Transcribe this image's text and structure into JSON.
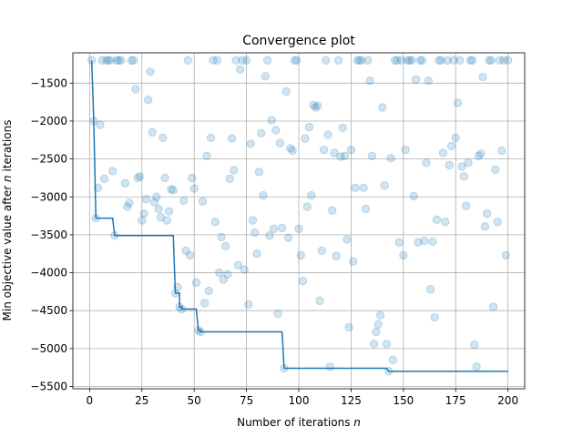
{
  "chart_data": {
    "type": "scatter",
    "title": "Convergence plot",
    "xlabel": "Number of iterations",
    "xlabel_var": "n",
    "ylabel_prefix": "Min objective value after",
    "ylabel_var": "n",
    "ylabel_suffix": "iterations",
    "xlim": [
      -8,
      208
    ],
    "ylim": [
      -5530,
      -1100
    ],
    "xticks": [
      0,
      25,
      50,
      75,
      100,
      125,
      150,
      175,
      200
    ],
    "xtick_labels": [
      "0",
      "25",
      "50",
      "75",
      "100",
      "125",
      "150",
      "175",
      "200"
    ],
    "yticks": [
      -5500,
      -5000,
      -4500,
      -4000,
      -3500,
      -3000,
      -2500,
      -2000,
      -1500
    ],
    "ytick_labels": [
      "−5500",
      "−5000",
      "−4500",
      "−4000",
      "−3500",
      "−3000",
      "−2500",
      "−2000",
      "−1500"
    ],
    "grid": true,
    "colors": {
      "series": "#1f77b4"
    },
    "series": [
      {
        "kind": "scatter",
        "points": [
          [
            1,
            -1200
          ],
          [
            2,
            -2000
          ],
          [
            3,
            -3280
          ],
          [
            4,
            -2880
          ],
          [
            5,
            -2050
          ],
          [
            6,
            -1200
          ],
          [
            7,
            -2760
          ],
          [
            8,
            -1200
          ],
          [
            9,
            -1200
          ],
          [
            10,
            -1200
          ],
          [
            11,
            -2660
          ],
          [
            12,
            -3510
          ],
          [
            13,
            -1200
          ],
          [
            14,
            -1200
          ],
          [
            15,
            -1200
          ],
          [
            17,
            -2820
          ],
          [
            18,
            -3130
          ],
          [
            19,
            -3080
          ],
          [
            20,
            -1200
          ],
          [
            21,
            -1200
          ],
          [
            22,
            -1580
          ],
          [
            23,
            -2750
          ],
          [
            24,
            -2730
          ],
          [
            25,
            -3310
          ],
          [
            26,
            -3220
          ],
          [
            27,
            -3030
          ],
          [
            28,
            -1720
          ],
          [
            29,
            -1350
          ],
          [
            30,
            -2150
          ],
          [
            31,
            -3070
          ],
          [
            32,
            -3000
          ],
          [
            33,
            -3160
          ],
          [
            34,
            -3270
          ],
          [
            35,
            -2220
          ],
          [
            36,
            -2750
          ],
          [
            37,
            -3310
          ],
          [
            38,
            -3190
          ],
          [
            39,
            -2900
          ],
          [
            40,
            -2910
          ],
          [
            41,
            -4270
          ],
          [
            42,
            -4190
          ],
          [
            43,
            -4450
          ],
          [
            44,
            -4480
          ],
          [
            45,
            -3050
          ],
          [
            46,
            -3710
          ],
          [
            47,
            -1200
          ],
          [
            48,
            -3770
          ],
          [
            49,
            -2750
          ],
          [
            50,
            -2890
          ],
          [
            51,
            -4130
          ],
          [
            52,
            -4760
          ],
          [
            53,
            -4780
          ],
          [
            54,
            -3060
          ],
          [
            55,
            -4400
          ],
          [
            56,
            -2460
          ],
          [
            57,
            -4240
          ],
          [
            58,
            -2220
          ],
          [
            59,
            -1200
          ],
          [
            60,
            -3330
          ],
          [
            61,
            -1200
          ],
          [
            62,
            -4000
          ],
          [
            63,
            -3530
          ],
          [
            64,
            -4090
          ],
          [
            65,
            -3650
          ],
          [
            66,
            -4020
          ],
          [
            67,
            -2760
          ],
          [
            68,
            -2230
          ],
          [
            69,
            -2650
          ],
          [
            70,
            -1200
          ],
          [
            71,
            -3900
          ],
          [
            72,
            -1320
          ],
          [
            73,
            -1200
          ],
          [
            74,
            -3960
          ],
          [
            75,
            -1200
          ],
          [
            76,
            -4420
          ],
          [
            77,
            -2300
          ],
          [
            78,
            -3310
          ],
          [
            79,
            -3470
          ],
          [
            80,
            -3750
          ],
          [
            81,
            -2670
          ],
          [
            82,
            -2160
          ],
          [
            83,
            -2980
          ],
          [
            84,
            -1410
          ],
          [
            85,
            -1200
          ],
          [
            86,
            -3510
          ],
          [
            87,
            -1990
          ],
          [
            88,
            -3420
          ],
          [
            89,
            -2120
          ],
          [
            90,
            -4540
          ],
          [
            91,
            -2290
          ],
          [
            92,
            -3410
          ],
          [
            93,
            -5260
          ],
          [
            94,
            -1610
          ],
          [
            95,
            -3540
          ],
          [
            96,
            -2360
          ],
          [
            97,
            -2390
          ],
          [
            98,
            -1200
          ],
          [
            99,
            -1200
          ],
          [
            100,
            -3420
          ],
          [
            101,
            -3770
          ],
          [
            102,
            -4110
          ],
          [
            103,
            -2230
          ],
          [
            104,
            -3130
          ],
          [
            105,
            -2080
          ],
          [
            106,
            -2980
          ],
          [
            107,
            -1790
          ],
          [
            108,
            -1820
          ],
          [
            109,
            -1800
          ],
          [
            110,
            -4370
          ],
          [
            111,
            -3710
          ],
          [
            112,
            -2380
          ],
          [
            113,
            -1200
          ],
          [
            114,
            -2180
          ],
          [
            115,
            -5240
          ],
          [
            116,
            -3180
          ],
          [
            117,
            -2420
          ],
          [
            118,
            -3780
          ],
          [
            119,
            -1200
          ],
          [
            120,
            -2470
          ],
          [
            121,
            -2090
          ],
          [
            122,
            -2460
          ],
          [
            123,
            -3560
          ],
          [
            124,
            -4720
          ],
          [
            125,
            -2380
          ],
          [
            126,
            -3850
          ],
          [
            127,
            -2880
          ],
          [
            128,
            -1200
          ],
          [
            129,
            -1200
          ],
          [
            130,
            -1200
          ],
          [
            131,
            -2880
          ],
          [
            132,
            -3160
          ],
          [
            133,
            -1200
          ],
          [
            134,
            -1470
          ],
          [
            135,
            -2460
          ],
          [
            136,
            -4940
          ],
          [
            137,
            -4780
          ],
          [
            138,
            -4680
          ],
          [
            139,
            -4560
          ],
          [
            140,
            -1820
          ],
          [
            141,
            -2850
          ],
          [
            142,
            -4940
          ],
          [
            143,
            -5300
          ],
          [
            144,
            -2490
          ],
          [
            145,
            -5150
          ],
          [
            146,
            -1200
          ],
          [
            147,
            -1200
          ],
          [
            148,
            -3600
          ],
          [
            149,
            -1200
          ],
          [
            150,
            -3770
          ],
          [
            151,
            -2380
          ],
          [
            152,
            -1200
          ],
          [
            153,
            -1200
          ],
          [
            154,
            -1200
          ],
          [
            155,
            -2990
          ],
          [
            156,
            -1450
          ],
          [
            157,
            -3600
          ],
          [
            158,
            -1200
          ],
          [
            159,
            -1200
          ],
          [
            160,
            -3580
          ],
          [
            161,
            -2550
          ],
          [
            162,
            -1470
          ],
          [
            163,
            -4220
          ],
          [
            164,
            -3590
          ],
          [
            165,
            -4590
          ],
          [
            166,
            -3300
          ],
          [
            167,
            -1200
          ],
          [
            168,
            -1200
          ],
          [
            169,
            -2420
          ],
          [
            170,
            -3330
          ],
          [
            171,
            -1200
          ],
          [
            172,
            -2580
          ],
          [
            173,
            -2330
          ],
          [
            174,
            -1200
          ],
          [
            175,
            -2220
          ],
          [
            176,
            -1760
          ],
          [
            177,
            -1200
          ],
          [
            178,
            -2600
          ],
          [
            179,
            -2730
          ],
          [
            180,
            -3120
          ],
          [
            181,
            -2550
          ],
          [
            182,
            -1200
          ],
          [
            183,
            -1200
          ],
          [
            184,
            -4950
          ],
          [
            185,
            -5240
          ],
          [
            186,
            -2460
          ],
          [
            187,
            -2430
          ],
          [
            188,
            -1420
          ],
          [
            189,
            -3390
          ],
          [
            190,
            -3220
          ],
          [
            191,
            -1200
          ],
          [
            192,
            -1200
          ],
          [
            193,
            -4450
          ],
          [
            194,
            -2640
          ],
          [
            195,
            -3330
          ],
          [
            196,
            -1200
          ],
          [
            197,
            -2390
          ],
          [
            198,
            -1200
          ],
          [
            199,
            -3770
          ],
          [
            200,
            -1200
          ]
        ]
      },
      {
        "kind": "line",
        "points": [
          [
            1,
            -1200
          ],
          [
            2,
            -2000
          ],
          [
            3,
            -3280
          ],
          [
            11,
            -3280
          ],
          [
            12,
            -3510
          ],
          [
            40,
            -3510
          ],
          [
            41,
            -4270
          ],
          [
            43,
            -4270
          ],
          [
            43,
            -4450
          ],
          [
            44,
            -4450
          ],
          [
            44,
            -4480
          ],
          [
            51,
            -4480
          ],
          [
            52,
            -4760
          ],
          [
            53,
            -4760
          ],
          [
            53,
            -4780
          ],
          [
            92,
            -4780
          ],
          [
            93,
            -5260
          ],
          [
            142,
            -5260
          ],
          [
            143,
            -5300
          ],
          [
            200,
            -5300
          ]
        ]
      }
    ]
  }
}
